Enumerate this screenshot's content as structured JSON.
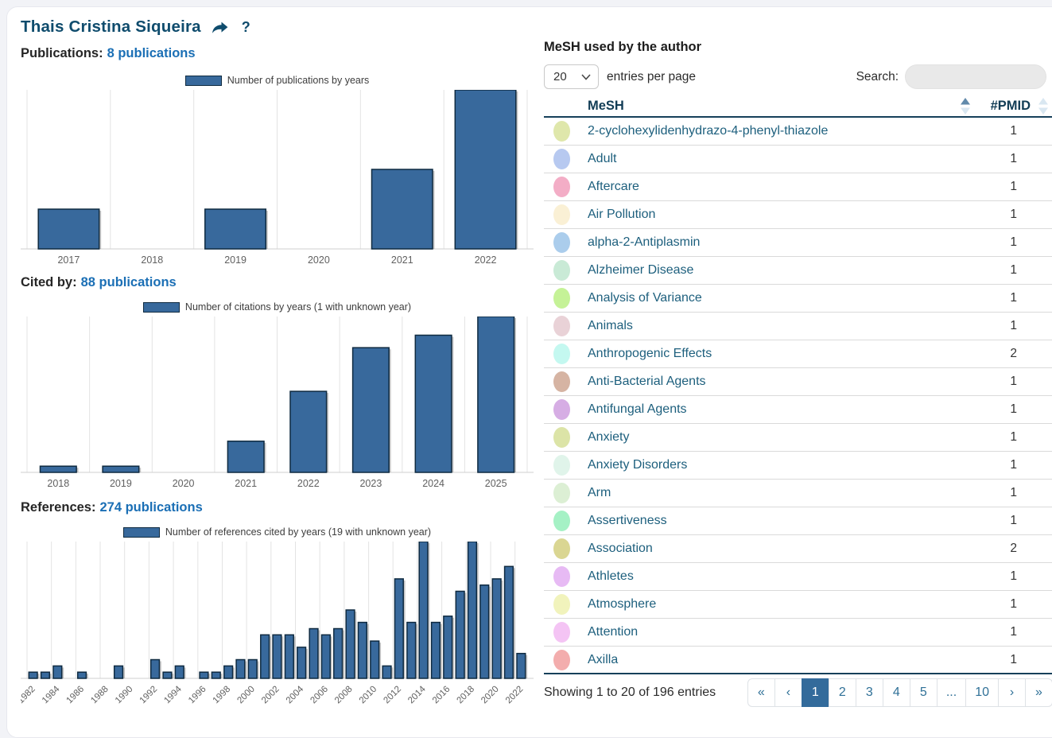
{
  "author": {
    "name": "Thais Cristina Siqueira",
    "help": "?"
  },
  "stats": {
    "publications_label": "Publications:",
    "publications_value": "8 publications",
    "cited_label": "Cited by:",
    "cited_value": "88 publications",
    "references_label": "References:",
    "references_value": "274 publications"
  },
  "chart_data": [
    {
      "type": "bar",
      "title": "Number of publications by years",
      "categories": [
        "2017",
        "2018",
        "2019",
        "2020",
        "2021",
        "2022"
      ],
      "values": [
        1,
        0,
        1,
        0,
        2,
        4
      ],
      "xlabel": "",
      "ylabel": "",
      "ylim": [
        0,
        4
      ],
      "grid": true,
      "legend_position": "top",
      "bar_color": "#38699c",
      "bar_border": "#0f2a40"
    },
    {
      "type": "bar",
      "title": "Number of citations by years (1 with unknown year)",
      "categories": [
        "2018",
        "2019",
        "2020",
        "2021",
        "2022",
        "2023",
        "2024",
        "2025"
      ],
      "values": [
        1,
        1,
        0,
        5,
        13,
        20,
        22,
        25
      ],
      "xlabel": "",
      "ylabel": "",
      "ylim": [
        0,
        25
      ],
      "grid": true,
      "legend_position": "top",
      "bar_color": "#38699c",
      "bar_border": "#0f2a40"
    },
    {
      "type": "bar",
      "title": "Number of references cited by years (19 with unknown year)",
      "categories": [
        "1982",
        "1983",
        "1984",
        "1985",
        "1986",
        "1987",
        "1988",
        "1989",
        "1990",
        "1991",
        "1992",
        "1993",
        "1994",
        "1995",
        "1996",
        "1997",
        "1998",
        "1999",
        "2000",
        "2001",
        "2002",
        "2003",
        "2004",
        "2005",
        "2006",
        "2007",
        "2008",
        "2009",
        "2010",
        "2011",
        "2012",
        "2013",
        "2014",
        "2015",
        "2016",
        "2017",
        "2018",
        "2019",
        "2020",
        "2021",
        "2022"
      ],
      "values": [
        1,
        1,
        2,
        0,
        1,
        0,
        0,
        2,
        0,
        0,
        3,
        1,
        2,
        0,
        1,
        1,
        2,
        3,
        3,
        7,
        7,
        7,
        5,
        8,
        7,
        8,
        11,
        9,
        6,
        2,
        16,
        9,
        22,
        9,
        10,
        14,
        22,
        15,
        16,
        18,
        4
      ],
      "xlabel": "",
      "ylabel": "",
      "ylim": [
        0,
        22
      ],
      "grid": true,
      "legend_position": "top",
      "bar_color": "#38699c",
      "bar_border": "#0f2a40"
    }
  ],
  "mesh_panel": {
    "title": "MeSH used by the author",
    "entries_value": "20",
    "entries_label": "entries per page",
    "search_label": "Search:",
    "columns": {
      "mesh": "MeSH",
      "pmid": "#PMID"
    },
    "rows": [
      {
        "label": "2-cyclohexylidenhydrazo-4-phenyl-thiazole",
        "count": "1",
        "color": "#dfe7ab"
      },
      {
        "label": "Adult",
        "count": "1",
        "color": "#b7c9f0"
      },
      {
        "label": "Aftercare",
        "count": "1",
        "color": "#f3adc6"
      },
      {
        "label": "Air Pollution",
        "count": "1",
        "color": "#faf0d5"
      },
      {
        "label": "alpha-2-Antiplasmin",
        "count": "1",
        "color": "#abcdec"
      },
      {
        "label": "Alzheimer Disease",
        "count": "1",
        "color": "#c9ead6"
      },
      {
        "label": "Analysis of Variance",
        "count": "1",
        "color": "#c5f297"
      },
      {
        "label": "Animals",
        "count": "1",
        "color": "#e9d2d7"
      },
      {
        "label": "Anthropogenic Effects",
        "count": "2",
        "color": "#c4f8f0"
      },
      {
        "label": "Anti-Bacterial Agents",
        "count": "1",
        "color": "#d6b4a3"
      },
      {
        "label": "Antifungal Agents",
        "count": "1",
        "color": "#d6ade4"
      },
      {
        "label": "Anxiety",
        "count": "1",
        "color": "#dce4a7"
      },
      {
        "label": "Anxiety Disorders",
        "count": "1",
        "color": "#e0f4ea"
      },
      {
        "label": "Arm",
        "count": "1",
        "color": "#dcefd4"
      },
      {
        "label": "Assertiveness",
        "count": "1",
        "color": "#a5f1c5"
      },
      {
        "label": "Association",
        "count": "2",
        "color": "#dad692"
      },
      {
        "label": "Athletes",
        "count": "1",
        "color": "#e7baf4"
      },
      {
        "label": "Atmosphere",
        "count": "1",
        "color": "#f1f3bc"
      },
      {
        "label": "Attention",
        "count": "1",
        "color": "#f4c4f4"
      },
      {
        "label": "Axilla",
        "count": "1",
        "color": "#f3adad"
      }
    ],
    "footer_text": "Showing 1 to 20 of 196 entries",
    "pagination": {
      "pages": [
        "«",
        "‹",
        "1",
        "2",
        "3",
        "4",
        "5",
        "...",
        "10",
        "›",
        "»"
      ],
      "active": "1"
    }
  },
  "colors": {
    "bar_fill": "#38699c",
    "bar_border": "#0f2a40",
    "heading": "#0f4c6d",
    "link_blue": "#1b6fb5",
    "link_teal": "#1d5f7d",
    "header_navy": "#113c55",
    "pagination_active": "#336b9b"
  }
}
